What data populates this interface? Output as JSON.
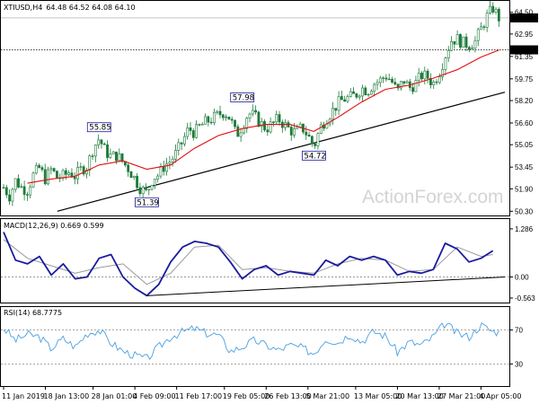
{
  "chart_data": [
    {
      "type": "line",
      "panel": "price",
      "title": "XTIUSD,H4",
      "ohlc_header": "64.48 64.52 64.08 64.10",
      "price_ticks": [
        "64.50",
        "62.95",
        "61.35",
        "59.75",
        "58.20",
        "56.60",
        "55.05",
        "53.45",
        "51.90",
        "50.30"
      ],
      "price_tick_values": [
        64.5,
        62.95,
        61.35,
        59.75,
        58.2,
        56.6,
        55.05,
        53.45,
        51.9,
        50.3
      ],
      "ylim": [
        50.0,
        65.25
      ],
      "current_price": {
        "value": 64.1,
        "label": "64.10"
      },
      "marked_level": {
        "value": 61.82,
        "label": "61.82"
      },
      "annotations": [
        {
          "label": "55.85",
          "value": 55.85,
          "x_index": 8
        },
        {
          "label": "51.39",
          "value": 51.39,
          "x_index": 12
        },
        {
          "label": "57.98",
          "value": 57.98,
          "x_index": 20
        },
        {
          "label": "54.72",
          "value": 54.72,
          "x_index": 26
        }
      ],
      "close_path": [
        {
          "x": 0,
          "y": 52.0
        },
        {
          "x": 0.5,
          "y": 51.4
        },
        {
          "x": 1,
          "y": 52.5
        },
        {
          "x": 1.5,
          "y": 52.0
        },
        {
          "x": 2,
          "y": 51.8
        },
        {
          "x": 2.5,
          "y": 52.9
        },
        {
          "x": 3,
          "y": 53.4
        },
        {
          "x": 3.5,
          "y": 52.6
        },
        {
          "x": 4,
          "y": 53.3
        },
        {
          "x": 4.5,
          "y": 52.7
        },
        {
          "x": 5,
          "y": 52.8
        },
        {
          "x": 5.5,
          "y": 53.1
        },
        {
          "x": 6,
          "y": 52.8
        },
        {
          "x": 6.5,
          "y": 53.3
        },
        {
          "x": 7,
          "y": 53.5
        },
        {
          "x": 7.5,
          "y": 54.8
        },
        {
          "x": 8,
          "y": 55.5
        },
        {
          "x": 8.5,
          "y": 54.6
        },
        {
          "x": 9,
          "y": 54.2
        },
        {
          "x": 9.5,
          "y": 54.3
        },
        {
          "x": 10,
          "y": 53.8
        },
        {
          "x": 10.5,
          "y": 53.3
        },
        {
          "x": 11,
          "y": 52.6
        },
        {
          "x": 11.5,
          "y": 51.9
        },
        {
          "x": 12,
          "y": 51.6
        },
        {
          "x": 12.5,
          "y": 52.7
        },
        {
          "x": 13,
          "y": 52.9
        },
        {
          "x": 13.5,
          "y": 53.6
        },
        {
          "x": 14,
          "y": 53.9
        },
        {
          "x": 14.5,
          "y": 54.5
        },
        {
          "x": 15,
          "y": 55.3
        },
        {
          "x": 15.5,
          "y": 56.2
        },
        {
          "x": 16,
          "y": 55.9
        },
        {
          "x": 16.5,
          "y": 56.4
        },
        {
          "x": 17,
          "y": 56.7
        },
        {
          "x": 17.5,
          "y": 56.9
        },
        {
          "x": 18,
          "y": 57.2
        },
        {
          "x": 18.5,
          "y": 57.4
        },
        {
          "x": 19,
          "y": 56.9
        },
        {
          "x": 19.5,
          "y": 55.7
        },
        {
          "x": 20,
          "y": 56.4
        },
        {
          "x": 20.5,
          "y": 57.3
        },
        {
          "x": 21,
          "y": 57.1
        },
        {
          "x": 21.5,
          "y": 56.6
        },
        {
          "x": 22,
          "y": 56.2
        },
        {
          "x": 22.5,
          "y": 56.5
        },
        {
          "x": 23,
          "y": 56.9
        },
        {
          "x": 23.5,
          "y": 56.5
        },
        {
          "x": 24,
          "y": 56.1
        },
        {
          "x": 24.5,
          "y": 55.9
        },
        {
          "x": 25,
          "y": 56.3
        },
        {
          "x": 25.5,
          "y": 55.7
        },
        {
          "x": 26,
          "y": 54.9
        },
        {
          "x": 26.5,
          "y": 56.2
        },
        {
          "x": 27,
          "y": 56.9
        },
        {
          "x": 27.5,
          "y": 57.4
        },
        {
          "x": 28,
          "y": 58.0
        },
        {
          "x": 28.5,
          "y": 58.3
        },
        {
          "x": 29,
          "y": 58.4
        },
        {
          "x": 29.5,
          "y": 58.6
        },
        {
          "x": 30,
          "y": 59.1
        },
        {
          "x": 30.5,
          "y": 58.9
        },
        {
          "x": 31,
          "y": 59.4
        },
        {
          "x": 31.5,
          "y": 59.6
        },
        {
          "x": 32,
          "y": 60.0
        },
        {
          "x": 32.5,
          "y": 59.6
        },
        {
          "x": 33,
          "y": 58.8
        },
        {
          "x": 33.5,
          "y": 59.7
        },
        {
          "x": 34,
          "y": 59.1
        },
        {
          "x": 34.5,
          "y": 59.4
        },
        {
          "x": 35,
          "y": 60.0
        },
        {
          "x": 35.5,
          "y": 59.9
        },
        {
          "x": 36,
          "y": 59.4
        },
        {
          "x": 36.5,
          "y": 60.2
        },
        {
          "x": 37,
          "y": 61.4
        },
        {
          "x": 37.5,
          "y": 62.5
        },
        {
          "x": 38,
          "y": 62.6
        },
        {
          "x": 38.5,
          "y": 62.3
        },
        {
          "x": 39,
          "y": 62.2
        },
        {
          "x": 39.5,
          "y": 62.4
        },
        {
          "x": 40,
          "y": 63.3
        },
        {
          "x": 40.5,
          "y": 64.2
        },
        {
          "x": 41,
          "y": 64.8
        },
        {
          "x": 41.5,
          "y": 64.1
        }
      ],
      "moving_average": [
        {
          "x": 2,
          "y": 52.3
        },
        {
          "x": 4,
          "y": 52.6
        },
        {
          "x": 6,
          "y": 52.8
        },
        {
          "x": 8,
          "y": 53.6
        },
        {
          "x": 10,
          "y": 53.9
        },
        {
          "x": 12,
          "y": 53.3
        },
        {
          "x": 14,
          "y": 53.6
        },
        {
          "x": 16,
          "y": 54.8
        },
        {
          "x": 18,
          "y": 55.7
        },
        {
          "x": 20,
          "y": 56.2
        },
        {
          "x": 22,
          "y": 56.5
        },
        {
          "x": 24,
          "y": 56.5
        },
        {
          "x": 26,
          "y": 56.0
        },
        {
          "x": 28,
          "y": 57.0
        },
        {
          "x": 30,
          "y": 58.1
        },
        {
          "x": 32,
          "y": 59.0
        },
        {
          "x": 34,
          "y": 59.3
        },
        {
          "x": 36,
          "y": 59.8
        },
        {
          "x": 38,
          "y": 60.4
        },
        {
          "x": 40,
          "y": 61.3
        },
        {
          "x": 41.5,
          "y": 61.8
        }
      ],
      "trendline": {
        "start": {
          "x": 4.5,
          "y": 50.3
        },
        "end": {
          "x": 42,
          "y": 58.8
        }
      }
    },
    {
      "type": "line",
      "panel": "macd",
      "title": "MACD(12,26,9) 0.669 0.599",
      "ticks": [
        "1.286",
        "0.00",
        "-0.563"
      ],
      "tick_values": [
        1.286,
        0.0,
        -0.563
      ],
      "ylim": [
        -0.66,
        1.5
      ],
      "macd": [
        {
          "x": 0,
          "y": 1.2
        },
        {
          "x": 1,
          "y": 0.45
        },
        {
          "x": 2,
          "y": 0.35
        },
        {
          "x": 3,
          "y": 0.55
        },
        {
          "x": 4,
          "y": 0.05
        },
        {
          "x": 5,
          "y": 0.35
        },
        {
          "x": 6,
          "y": -0.05
        },
        {
          "x": 7,
          "y": 0.0
        },
        {
          "x": 8,
          "y": 0.5
        },
        {
          "x": 9,
          "y": 0.6
        },
        {
          "x": 10,
          "y": 0.0
        },
        {
          "x": 11,
          "y": -0.3
        },
        {
          "x": 12,
          "y": -0.5
        },
        {
          "x": 13,
          "y": -0.2
        },
        {
          "x": 14,
          "y": 0.4
        },
        {
          "x": 15,
          "y": 0.8
        },
        {
          "x": 16,
          "y": 0.95
        },
        {
          "x": 17,
          "y": 0.9
        },
        {
          "x": 18,
          "y": 0.8
        },
        {
          "x": 19,
          "y": 0.4
        },
        {
          "x": 20,
          "y": -0.05
        },
        {
          "x": 21,
          "y": 0.2
        },
        {
          "x": 22,
          "y": 0.3
        },
        {
          "x": 23,
          "y": 0.05
        },
        {
          "x": 24,
          "y": 0.15
        },
        {
          "x": 25,
          "y": 0.1
        },
        {
          "x": 26,
          "y": 0.05
        },
        {
          "x": 27,
          "y": 0.45
        },
        {
          "x": 28,
          "y": 0.3
        },
        {
          "x": 29,
          "y": 0.55
        },
        {
          "x": 30,
          "y": 0.45
        },
        {
          "x": 31,
          "y": 0.55
        },
        {
          "x": 32,
          "y": 0.45
        },
        {
          "x": 33,
          "y": 0.05
        },
        {
          "x": 34,
          "y": 0.15
        },
        {
          "x": 35,
          "y": 0.1
        },
        {
          "x": 36,
          "y": 0.2
        },
        {
          "x": 37,
          "y": 0.9
        },
        {
          "x": 38,
          "y": 0.75
        },
        {
          "x": 39,
          "y": 0.4
        },
        {
          "x": 40,
          "y": 0.5
        },
        {
          "x": 41,
          "y": 0.7
        }
      ],
      "signal": [
        {
          "x": 0,
          "y": 1.0
        },
        {
          "x": 2,
          "y": 0.5
        },
        {
          "x": 4,
          "y": 0.3
        },
        {
          "x": 6,
          "y": 0.1
        },
        {
          "x": 8,
          "y": 0.25
        },
        {
          "x": 10,
          "y": 0.35
        },
        {
          "x": 12,
          "y": -0.2
        },
        {
          "x": 14,
          "y": 0.1
        },
        {
          "x": 16,
          "y": 0.8
        },
        {
          "x": 18,
          "y": 0.85
        },
        {
          "x": 20,
          "y": 0.2
        },
        {
          "x": 22,
          "y": 0.25
        },
        {
          "x": 24,
          "y": 0.15
        },
        {
          "x": 26,
          "y": 0.1
        },
        {
          "x": 28,
          "y": 0.35
        },
        {
          "x": 30,
          "y": 0.5
        },
        {
          "x": 32,
          "y": 0.45
        },
        {
          "x": 34,
          "y": 0.15
        },
        {
          "x": 36,
          "y": 0.2
        },
        {
          "x": 38,
          "y": 0.8
        },
        {
          "x": 40,
          "y": 0.55
        },
        {
          "x": 41,
          "y": 0.6
        }
      ],
      "trendline": {
        "start": {
          "x": 12,
          "y": -0.5
        },
        "end": {
          "x": 42,
          "y": 0.0
        }
      }
    },
    {
      "type": "line",
      "panel": "rsi",
      "title": "RSI(14) 68.7775",
      "ticks": [
        "70",
        "30"
      ],
      "tick_values": [
        70,
        30
      ],
      "ylim": [
        5,
        95
      ],
      "rsi": [
        {
          "x": 0,
          "y": 72
        },
        {
          "x": 1,
          "y": 58
        },
        {
          "x": 2,
          "y": 65
        },
        {
          "x": 3,
          "y": 62
        },
        {
          "x": 4,
          "y": 48
        },
        {
          "x": 5,
          "y": 60
        },
        {
          "x": 6,
          "y": 50
        },
        {
          "x": 7,
          "y": 66
        },
        {
          "x": 8,
          "y": 70
        },
        {
          "x": 9,
          "y": 55
        },
        {
          "x": 10,
          "y": 45
        },
        {
          "x": 11,
          "y": 40
        },
        {
          "x": 12,
          "y": 36
        },
        {
          "x": 13,
          "y": 50
        },
        {
          "x": 14,
          "y": 62
        },
        {
          "x": 15,
          "y": 68
        },
        {
          "x": 16,
          "y": 72
        },
        {
          "x": 17,
          "y": 66
        },
        {
          "x": 18,
          "y": 64
        },
        {
          "x": 19,
          "y": 45
        },
        {
          "x": 20,
          "y": 50
        },
        {
          "x": 21,
          "y": 58
        },
        {
          "x": 22,
          "y": 52
        },
        {
          "x": 23,
          "y": 46
        },
        {
          "x": 24,
          "y": 52
        },
        {
          "x": 25,
          "y": 49
        },
        {
          "x": 26,
          "y": 42
        },
        {
          "x": 27,
          "y": 60
        },
        {
          "x": 28,
          "y": 55
        },
        {
          "x": 29,
          "y": 65
        },
        {
          "x": 30,
          "y": 56
        },
        {
          "x": 31,
          "y": 68
        },
        {
          "x": 32,
          "y": 63
        },
        {
          "x": 33,
          "y": 44
        },
        {
          "x": 34,
          "y": 56
        },
        {
          "x": 35,
          "y": 52
        },
        {
          "x": 36,
          "y": 62
        },
        {
          "x": 37,
          "y": 78
        },
        {
          "x": 38,
          "y": 66
        },
        {
          "x": 39,
          "y": 62
        },
        {
          "x": 40,
          "y": 76
        },
        {
          "x": 41,
          "y": 68
        }
      ]
    }
  ],
  "x_axis_labels": [
    {
      "label": "11 Jan 2019",
      "x_index": 0
    },
    {
      "label": "18 Jan 13:00",
      "x_index": 3.5
    },
    {
      "label": "28 Jan 01:00",
      "x_index": 7.5
    },
    {
      "label": "4 Feb 09:00",
      "x_index": 11
    },
    {
      "label": "11 Feb 17:00",
      "x_index": 14.5
    },
    {
      "label": "19 Feb 05:00",
      "x_index": 18.5
    },
    {
      "label": "26 Feb 13:00",
      "x_index": 22
    },
    {
      "label": "5 Mar 21:00",
      "x_index": 25.5
    },
    {
      "label": "13 Mar 05:00",
      "x_index": 29.5
    },
    {
      "label": "20 Mar 13:00",
      "x_index": 33
    },
    {
      "label": "27 Mar 21:00",
      "x_index": 36.5
    },
    {
      "label": "4 Apr 05:00",
      "x_index": 40
    }
  ],
  "watermark": "ActionForex.com",
  "colors": {
    "candles": "#1c7a3a",
    "moving_average": "#e01010",
    "macd": "#1a1aa0",
    "signal": "#999999",
    "rsi": "#4aa0e0",
    "trendline": "#000000"
  }
}
